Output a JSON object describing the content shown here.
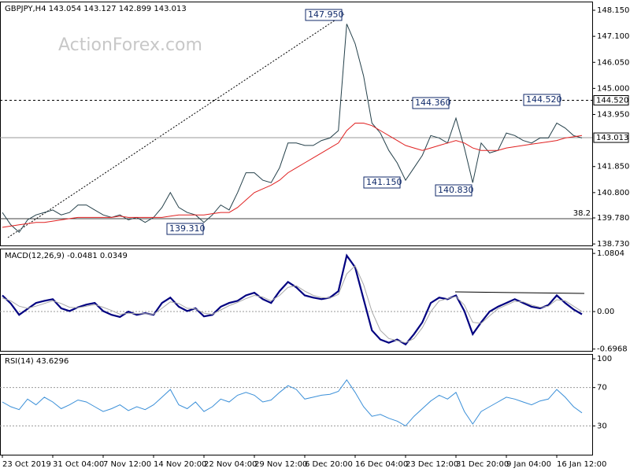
{
  "chart_data": [
    {
      "type": "line",
      "title": "GBPJPY,H4  143.054 143.127 142.899 143.013",
      "watermark": "ActionForex.com",
      "ylim": [
        138.67,
        148.5
      ],
      "yticks": [
        {
          "value": 148.15,
          "label": "148.150"
        },
        {
          "value": 147.1,
          "label": "147.100"
        },
        {
          "value": 146.05,
          "label": "146.050"
        },
        {
          "value": 145.0,
          "label": "145.000"
        },
        {
          "value": 143.95,
          "label": "143.950"
        },
        {
          "value": 141.85,
          "label": "141.850"
        },
        {
          "value": 140.8,
          "label": "140.800"
        },
        {
          "value": 139.78,
          "label": "139.780"
        },
        {
          "value": 138.73,
          "label": "138.730"
        }
      ],
      "levels": [
        {
          "value": 144.52,
          "label": "144.520",
          "style": "dashed"
        },
        {
          "value": 143.013,
          "label": "143.013",
          "style": "solid"
        }
      ],
      "fibo": {
        "level": 139.75,
        "text": "38.2"
      },
      "annotations": [
        "147.950",
        "144.360",
        "144.520",
        "141.150",
        "140.830",
        "139.310"
      ],
      "series": [
        {
          "color": "#24404a",
          "values": [
            140.0,
            139.5,
            139.2,
            139.7,
            139.9,
            140.0,
            140.1,
            139.9,
            140.0,
            140.3,
            140.3,
            140.1,
            139.9,
            139.8,
            139.9,
            139.7,
            139.8,
            139.6,
            139.8,
            140.2,
            140.8,
            140.2,
            140.0,
            139.9,
            139.6,
            139.9,
            140.3,
            140.1,
            140.8,
            141.6,
            141.6,
            141.3,
            141.2,
            141.8,
            142.8,
            142.8,
            142.7,
            142.7,
            142.9,
            143.0,
            143.3,
            147.6,
            146.8,
            145.5,
            143.6,
            143.2,
            142.5,
            142.0,
            141.3,
            141.8,
            142.3,
            143.1,
            143.0,
            142.8,
            143.8,
            142.6,
            141.2,
            142.8,
            142.4,
            142.5,
            143.2,
            143.1,
            142.9,
            142.8,
            143.0,
            143.0,
            143.6,
            143.4,
            143.1,
            143.0
          ]
        },
        {
          "color": "#e02020",
          "values": [
            139.4,
            139.45,
            139.5,
            139.55,
            139.6,
            139.6,
            139.65,
            139.7,
            139.75,
            139.8,
            139.8,
            139.8,
            139.8,
            139.8,
            139.85,
            139.8,
            139.8,
            139.8,
            139.8,
            139.8,
            139.85,
            139.9,
            139.9,
            139.9,
            139.9,
            139.95,
            140.0,
            140.0,
            140.2,
            140.5,
            140.8,
            140.95,
            141.1,
            141.3,
            141.6,
            141.8,
            142.0,
            142.2,
            142.4,
            142.6,
            142.8,
            143.3,
            143.6,
            143.6,
            143.5,
            143.3,
            143.1,
            142.9,
            142.7,
            142.6,
            142.5,
            142.6,
            142.7,
            142.8,
            142.9,
            142.8,
            142.6,
            142.5,
            142.5,
            142.5,
            142.6,
            142.65,
            142.7,
            142.75,
            142.8,
            142.85,
            142.9,
            143.0,
            143.05,
            143.1
          ]
        }
      ]
    },
    {
      "type": "line",
      "title": "MACD(12,26,9) -0.0481 0.0349",
      "ylim": [
        -0.73,
        1.17
      ],
      "yticks": [
        1.0804,
        {
          "value": 0,
          "label": "0.00"
        },
        -0.6968
      ],
      "series": [
        {
          "color": "#000080",
          "values": [
            0.3,
            0.15,
            -0.06,
            0.05,
            0.16,
            0.2,
            0.23,
            0.06,
            0.01,
            0.08,
            0.13,
            0.16,
            0.01,
            -0.06,
            -0.1,
            0.0,
            -0.06,
            -0.03,
            -0.06,
            0.16,
            0.26,
            0.09,
            0.01,
            0.06,
            -0.09,
            -0.06,
            0.09,
            0.16,
            0.2,
            0.3,
            0.35,
            0.23,
            0.16,
            0.38,
            0.55,
            0.45,
            0.3,
            0.26,
            0.23,
            0.26,
            0.38,
            1.04,
            0.82,
            0.23,
            -0.35,
            -0.52,
            -0.58,
            -0.52,
            -0.61,
            -0.42,
            -0.2,
            0.16,
            0.26,
            0.23,
            0.3,
            0.01,
            -0.42,
            -0.2,
            0.0,
            0.09,
            0.16,
            0.23,
            0.16,
            0.09,
            0.06,
            0.12,
            0.3,
            0.16,
            0.04,
            -0.05
          ]
        },
        {
          "color": "#a8a8a8",
          "values": [
            0.25,
            0.2,
            0.1,
            0.06,
            0.1,
            0.15,
            0.2,
            0.15,
            0.08,
            0.07,
            0.1,
            0.13,
            0.08,
            0.02,
            -0.05,
            -0.03,
            -0.04,
            -0.04,
            -0.05,
            0.06,
            0.18,
            0.15,
            0.06,
            0.05,
            -0.03,
            -0.05,
            0.03,
            0.11,
            0.17,
            0.24,
            0.3,
            0.27,
            0.2,
            0.3,
            0.45,
            0.48,
            0.38,
            0.3,
            0.26,
            0.25,
            0.32,
            0.7,
            0.85,
            0.5,
            0.0,
            -0.35,
            -0.5,
            -0.54,
            -0.58,
            -0.5,
            -0.3,
            0.0,
            0.2,
            0.24,
            0.28,
            0.12,
            -0.2,
            -0.22,
            -0.08,
            0.05,
            0.12,
            0.19,
            0.18,
            0.12,
            0.08,
            0.1,
            0.22,
            0.2,
            0.1,
            0.0
          ]
        }
      ]
    },
    {
      "type": "line",
      "title": "RSI(14) 43.6296",
      "ylim": [
        0,
        105
      ],
      "yticks": [
        100,
        70,
        30
      ],
      "grid": [
        70,
        30
      ],
      "categories": [
        "23 Oct 2019",
        null,
        null,
        null,
        null,
        null,
        "31 Oct 04:00",
        null,
        null,
        null,
        null,
        null,
        "7 Nov 12:00",
        null,
        null,
        null,
        null,
        null,
        "14 Nov 20:00",
        null,
        null,
        null,
        null,
        null,
        "22 Nov 04:00",
        null,
        null,
        null,
        null,
        null,
        "29 Nov 12:00",
        null,
        null,
        null,
        null,
        null,
        "6 Dec 20:00",
        null,
        null,
        null,
        null,
        null,
        "16 Dec 04:00",
        null,
        null,
        null,
        null,
        null,
        "23 Dec 12:00",
        null,
        null,
        null,
        null,
        null,
        "31 Dec 20:00",
        null,
        null,
        null,
        null,
        null,
        "9 Jan 04:00",
        null,
        null,
        null,
        null,
        null,
        "16 Jan 12:00",
        null,
        null,
        null
      ],
      "series": [
        {
          "color": "#3a8fd8",
          "values": [
            55,
            50,
            47,
            58,
            52,
            60,
            55,
            48,
            52,
            57,
            55,
            50,
            45,
            48,
            52,
            46,
            50,
            47,
            52,
            60,
            68,
            52,
            48,
            55,
            45,
            50,
            58,
            55,
            62,
            65,
            62,
            55,
            57,
            65,
            72,
            68,
            58,
            60,
            62,
            63,
            66,
            78,
            65,
            50,
            40,
            42,
            38,
            35,
            30,
            40,
            48,
            56,
            62,
            58,
            65,
            45,
            32,
            45,
            50,
            55,
            60,
            58,
            55,
            52,
            56,
            58,
            68,
            60,
            50,
            43.6296
          ]
        }
      ]
    }
  ]
}
